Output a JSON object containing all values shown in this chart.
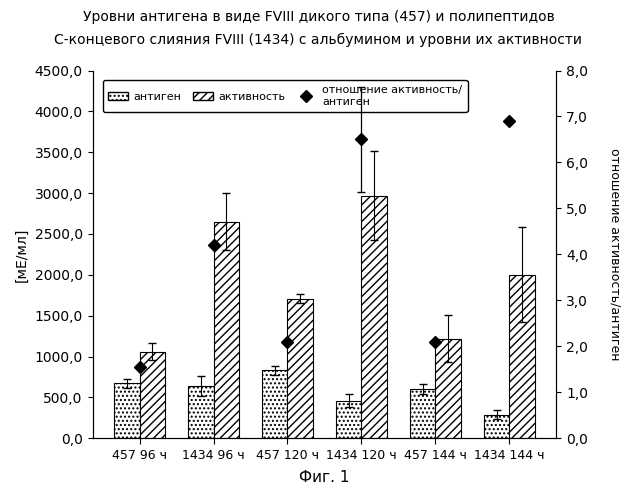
{
  "title_line1": "Уровни антигена в виде FVIII дикого типа (457) и полипептидов",
  "title_line2": "С-концевого слияния FVIII (1434) с альбумином и уровни их активности",
  "xlabel_caption": "Фиг. 1",
  "ylabel_left": "[мЕ/мл]",
  "ylabel_right": "отношение активность/антиген",
  "groups": [
    "457 96 ч",
    "1434 96 ч",
    "457 120 ч",
    "1434 120 ч",
    "457 144 ч",
    "1434 144 ч"
  ],
  "antigen": [
    670,
    640,
    830,
    460,
    600,
    290
  ],
  "antigen_err": [
    50,
    120,
    50,
    80,
    60,
    60
  ],
  "activity": [
    1060,
    2650,
    1710,
    2970,
    1220,
    2000
  ],
  "activity_err": [
    100,
    350,
    60,
    550,
    290,
    580
  ],
  "ratio": [
    1.55,
    4.2,
    2.1,
    6.5,
    2.1,
    6.9
  ],
  "ratio_err_low": [
    0,
    0,
    0,
    1.15,
    0,
    0
  ],
  "ratio_err_high": [
    0,
    0,
    0,
    1.15,
    0,
    0
  ],
  "ylim_left": [
    0,
    4500
  ],
  "ylim_right": [
    0,
    8.0
  ],
  "yticks_left": [
    0,
    500,
    1000,
    1500,
    2000,
    2500,
    3000,
    3500,
    4000,
    4500
  ],
  "yticks_right": [
    0,
    1,
    2,
    3,
    4,
    5,
    6,
    7,
    8
  ],
  "legend_antigen": "антиген",
  "legend_activity": "активность",
  "legend_ratio": "отношение активность/\nантиген",
  "bar_width": 0.35
}
